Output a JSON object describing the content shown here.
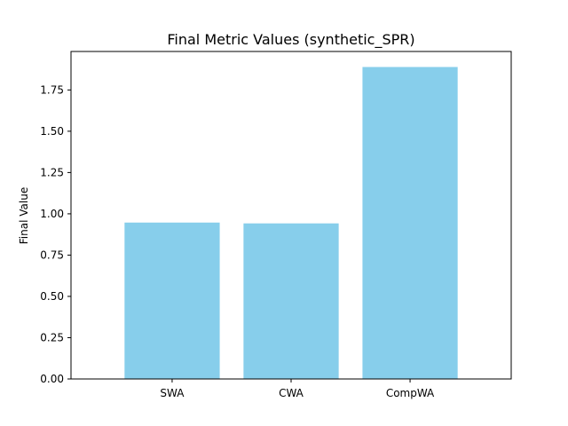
{
  "chart_data": {
    "type": "bar",
    "title": "Final Metric Values (synthetic_SPR)",
    "xlabel": "",
    "ylabel": "Final Value",
    "categories": [
      "SWA",
      "CWA",
      "CompWA"
    ],
    "values": [
      0.947,
      0.942,
      1.889
    ],
    "ylim": [
      0,
      1.983
    ],
    "yticks": [
      0.0,
      0.25,
      0.5,
      0.75,
      1.0,
      1.25,
      1.5,
      1.75
    ],
    "ytick_labels": [
      "0.00",
      "0.25",
      "0.50",
      "0.75",
      "1.00",
      "1.25",
      "1.50",
      "1.75"
    ],
    "bar_color": "#87ceeb",
    "grid": false,
    "legend": "none"
  }
}
